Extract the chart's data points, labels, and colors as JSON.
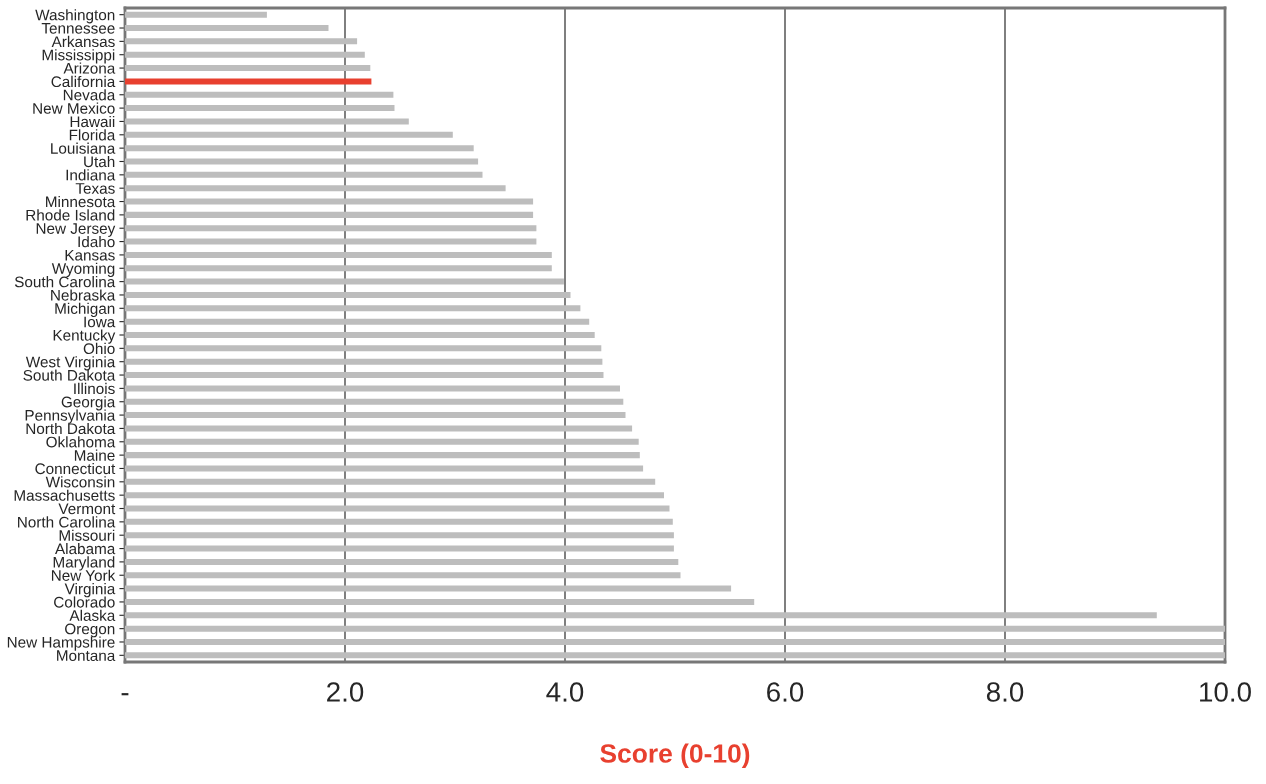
{
  "chart_data": {
    "type": "bar",
    "orientation": "horizontal",
    "xlabel": "Score (0-10)",
    "categories": [
      "Washington",
      "Tennessee",
      "Arkansas",
      "Mississippi",
      "Arizona",
      "California",
      "Nevada",
      "New Mexico",
      "Hawaii",
      "Florida",
      "Louisiana",
      "Utah",
      "Indiana",
      "Texas",
      "Minnesota",
      "Rhode Island",
      "New Jersey",
      "Idaho",
      "Kansas",
      "Wyoming",
      "South Carolina",
      "Nebraska",
      "Michigan",
      "Iowa",
      "Kentucky",
      "Ohio",
      "West Virginia",
      "South Dakota",
      "Illinois",
      "Georgia",
      "Pennsylvania",
      "North Dakota",
      "Oklahoma",
      "Maine",
      "Connecticut",
      "Wisconsin",
      "Massachusetts",
      "Vermont",
      "North Carolina",
      "Missouri",
      "Alabama",
      "Maryland",
      "New York",
      "Virginia",
      "Colorado",
      "Alaska",
      "Oregon",
      "New Hampshire",
      "Montana"
    ],
    "values": [
      1.29,
      1.85,
      2.11,
      2.18,
      2.23,
      2.24,
      2.44,
      2.45,
      2.58,
      2.98,
      3.17,
      3.21,
      3.25,
      3.46,
      3.71,
      3.71,
      3.74,
      3.74,
      3.88,
      3.88,
      3.99,
      4.05,
      4.14,
      4.22,
      4.27,
      4.33,
      4.34,
      4.35,
      4.5,
      4.53,
      4.55,
      4.61,
      4.67,
      4.68,
      4.71,
      4.82,
      4.9,
      4.95,
      4.98,
      4.99,
      4.99,
      5.03,
      5.05,
      5.51,
      5.72,
      9.38,
      10,
      10,
      10
    ],
    "colors": [
      "#bdbdbd",
      "#bdbdbd",
      "#bdbdbd",
      "#bdbdbd",
      "#bdbdbd",
      "#e8402f",
      "#bdbdbd",
      "#bdbdbd",
      "#bdbdbd",
      "#bdbdbd",
      "#bdbdbd",
      "#bdbdbd",
      "#bdbdbd",
      "#bdbdbd",
      "#bdbdbd",
      "#bdbdbd",
      "#bdbdbd",
      "#bdbdbd",
      "#bdbdbd",
      "#bdbdbd",
      "#bdbdbd",
      "#bdbdbd",
      "#bdbdbd",
      "#bdbdbd",
      "#bdbdbd",
      "#bdbdbd",
      "#bdbdbd",
      "#bdbdbd",
      "#bdbdbd",
      "#bdbdbd",
      "#bdbdbd",
      "#bdbdbd",
      "#bdbdbd",
      "#bdbdbd",
      "#bdbdbd",
      "#bdbdbd",
      "#bdbdbd",
      "#bdbdbd",
      "#bdbdbd",
      "#bdbdbd",
      "#bdbdbd",
      "#bdbdbd",
      "#bdbdbd",
      "#bdbdbd",
      "#bdbdbd",
      "#bdbdbd",
      "#bdbdbd",
      "#bdbdbd",
      "#bdbdbd"
    ],
    "xlim": [
      0,
      10
    ],
    "xticks": [
      {
        "value": 0,
        "label": "-"
      },
      {
        "value": 2,
        "label": "2.0"
      },
      {
        "value": 4,
        "label": "4.0"
      },
      {
        "value": 6,
        "label": "6.0"
      },
      {
        "value": 8,
        "label": "8.0"
      },
      {
        "value": 10,
        "label": "10.0"
      }
    ],
    "grid": "x",
    "legend": false
  }
}
